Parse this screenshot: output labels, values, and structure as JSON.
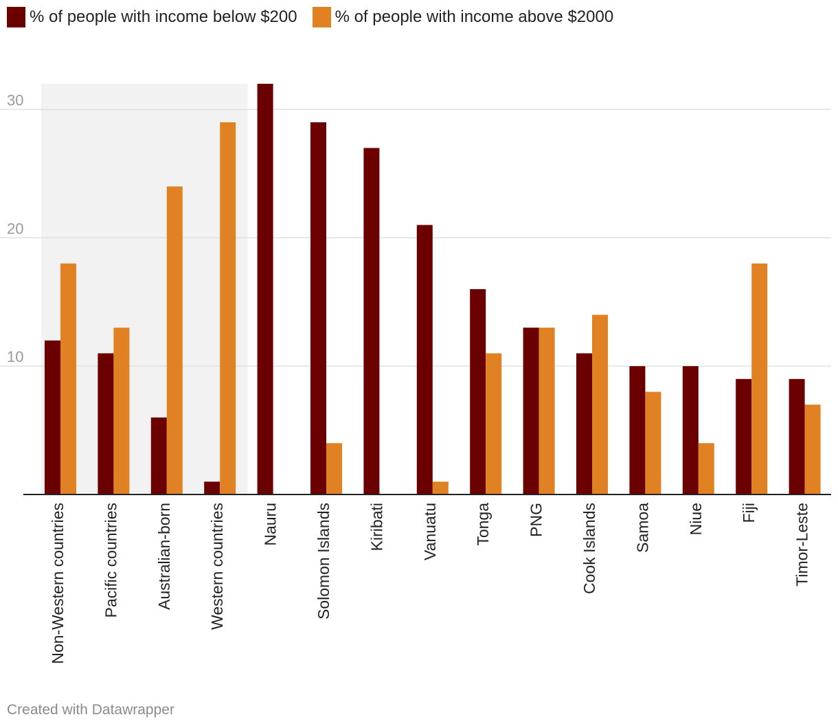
{
  "legend": {
    "below_label": "% of people with income below $200",
    "above_label": "% of people with income above $2000"
  },
  "colors": {
    "below": "#6b0000",
    "above": "#e08224",
    "highlight_band": "#f2f2f2",
    "grid": "#e0e0e0",
    "tick_text": "#9a9a9a",
    "axis": "#222222"
  },
  "chart_data": {
    "type": "bar",
    "categories": [
      "Non-Western countries",
      "Pacific countries",
      "Australian-born",
      "Western countries",
      "Nauru",
      "Solomon Islands",
      "Kiribati",
      "Vanuatu",
      "Tonga",
      "PNG",
      "Cook Islands",
      "Samoa",
      "Niue",
      "Fiji",
      "Timor-Leste"
    ],
    "series": [
      {
        "name": "% of people with income below $200",
        "values": [
          12,
          11,
          6,
          1,
          32,
          29,
          27,
          21,
          16,
          13,
          11,
          10,
          10,
          9,
          9
        ]
      },
      {
        "name": "% of people with income above $2000",
        "values": [
          18,
          13,
          24,
          29,
          0,
          4,
          0,
          1,
          11,
          13,
          14,
          8,
          4,
          18,
          7
        ]
      }
    ],
    "ylim": [
      0,
      32
    ],
    "yticks": [
      10,
      20,
      30
    ],
    "highlighted_categories": [
      "Non-Western countries",
      "Pacific countries",
      "Australian-born",
      "Western countries"
    ],
    "grid": true,
    "legend_position": "top-left"
  },
  "footer": {
    "credit": "Created with Datawrapper"
  }
}
